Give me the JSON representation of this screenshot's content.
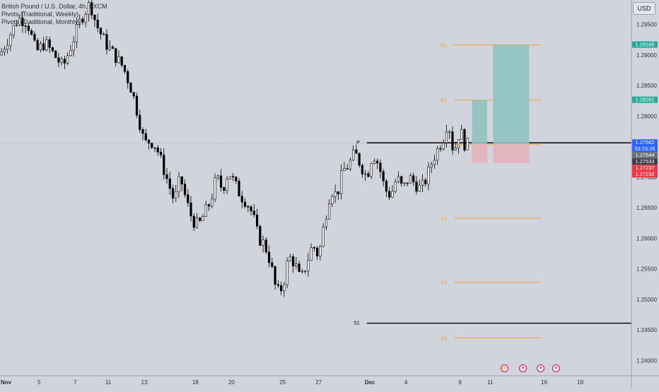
{
  "legend": {
    "symbol": "British Pound / U.S. Dollar, 4h, FXCM",
    "line2": "Pivots (Traditional, Weekly)",
    "line3": "Pivots (Traditional, Monthly)"
  },
  "currency": "USD",
  "colors": {
    "bg": "#d1d4dc",
    "candle": "#000000",
    "pivot_weekly": "#f0a030",
    "pivot_monthly": "#000000",
    "profit": "#8fc1c1",
    "loss": "#e3b3b8",
    "green_label": "#22ab94",
    "red_label": "#f23645",
    "blue_label": "#2962ff",
    "gray_label": "#6b6f7a"
  },
  "chart_data": {
    "type": "candlestick",
    "symbol": "GBPUSD",
    "timeframe": "4h",
    "ylim": [
      1.2375,
      1.299
    ],
    "xlim": [
      0,
      210
    ],
    "y_ticks": [
      "1.29500",
      "1.29000",
      "1.28500",
      "1.28000",
      "1.27500",
      "1.27000",
      "1.26500",
      "1.26000",
      "1.25500",
      "1.25000",
      "1.24500",
      "1.24000"
    ],
    "y_tick_values": [
      1.295,
      1.29,
      1.285,
      1.28,
      1.275,
      1.27,
      1.265,
      1.26,
      1.255,
      1.25,
      1.245,
      1.24
    ],
    "x_ticks": [
      {
        "label": "Nov",
        "x": 2,
        "bold": true
      },
      {
        "label": "5",
        "x": 13
      },
      {
        "label": "7",
        "x": 25
      },
      {
        "label": "11",
        "x": 36
      },
      {
        "label": "13",
        "x": 48
      },
      {
        "label": "18",
        "x": 65
      },
      {
        "label": "20",
        "x": 77
      },
      {
        "label": "25",
        "x": 94
      },
      {
        "label": "27",
        "x": 106
      },
      {
        "label": "Dec",
        "x": 123,
        "bold": true
      },
      {
        "label": "4",
        "x": 135
      },
      {
        "label": "9",
        "x": 153
      },
      {
        "label": "11",
        "x": 163
      },
      {
        "label": "16",
        "x": 181
      },
      {
        "label": "18",
        "x": 193
      }
    ],
    "price_path": [
      [
        0,
        1.29
      ],
      [
        3,
        1.293
      ],
      [
        6,
        1.296
      ],
      [
        9,
        1.2955
      ],
      [
        12,
        1.2905
      ],
      [
        15,
        1.292
      ],
      [
        18,
        1.29
      ],
      [
        21,
        1.288
      ],
      [
        24,
        1.292
      ],
      [
        27,
        1.296
      ],
      [
        30,
        1.2985
      ],
      [
        32,
        1.295
      ],
      [
        35,
        1.292
      ],
      [
        38,
        1.29
      ],
      [
        41,
        1.288
      ],
      [
        44,
        1.284
      ],
      [
        46,
        1.28
      ],
      [
        48,
        1.2755
      ],
      [
        50,
        1.276
      ],
      [
        52,
        1.275
      ],
      [
        54,
        1.272
      ],
      [
        56,
        1.269
      ],
      [
        58,
        1.266
      ],
      [
        60,
        1.27
      ],
      [
        62,
        1.266
      ],
      [
        64,
        1.263
      ],
      [
        66,
        1.262
      ],
      [
        68,
        1.264
      ],
      [
        70,
        1.266
      ],
      [
        72,
        1.27
      ],
      [
        74,
        1.268
      ],
      [
        76,
        1.271
      ],
      [
        78,
        1.269
      ],
      [
        80,
        1.267
      ],
      [
        82,
        1.266
      ],
      [
        84,
        1.264
      ],
      [
        86,
        1.26
      ],
      [
        88,
        1.259
      ],
      [
        90,
        1.256
      ],
      [
        92,
        1.251
      ],
      [
        94,
        1.252
      ],
      [
        96,
        1.257
      ],
      [
        98,
        1.256
      ],
      [
        100,
        1.253
      ],
      [
        102,
        1.256
      ],
      [
        104,
        1.259
      ],
      [
        106,
        1.257
      ],
      [
        108,
        1.263
      ],
      [
        110,
        1.268
      ],
      [
        112,
        1.267
      ],
      [
        114,
        1.271
      ],
      [
        116,
        1.272
      ],
      [
        118,
        1.274
      ],
      [
        120,
        1.272
      ],
      [
        122,
        1.27
      ],
      [
        124,
        1.274
      ],
      [
        126,
        1.272
      ],
      [
        128,
        1.268
      ],
      [
        130,
        1.267
      ],
      [
        132,
        1.27
      ],
      [
        134,
        1.268
      ],
      [
        136,
        1.27
      ],
      [
        138,
        1.269
      ],
      [
        140,
        1.268
      ],
      [
        142,
        1.27
      ],
      [
        144,
        1.273
      ],
      [
        146,
        1.275
      ],
      [
        148,
        1.277
      ],
      [
        149,
        1.28
      ],
      [
        150,
        1.276
      ],
      [
        151,
        1.274
      ],
      [
        152,
        1.276
      ],
      [
        153,
        1.278
      ],
      [
        154,
        1.276
      ],
      [
        155,
        1.275
      ],
      [
        156,
        1.2757
      ]
    ],
    "last_price": "1.27562",
    "countdown": "03:23:26",
    "weekly_pivots": [
      {
        "name": "R2",
        "label": "R2",
        "value": 1.29165
      },
      {
        "name": "R1",
        "label": "R1",
        "value": 1.28262
      },
      {
        "name": "P",
        "label": "P",
        "value": 1.27533
      },
      {
        "name": "S1",
        "label": "S1",
        "value": 1.2633
      },
      {
        "name": "S2",
        "label": "S2",
        "value": 1.2528
      },
      {
        "name": "S3",
        "label": "S3",
        "value": 1.2437
      }
    ],
    "monthly_pivots": [
      {
        "name": "P",
        "label": "P",
        "value": 1.27562
      },
      {
        "name": "S1",
        "label": "S1",
        "value": 1.2461
      }
    ],
    "positions": [
      {
        "entry": 1.27544,
        "target": 1.28262,
        "stop": 1.27237,
        "x0": 157,
        "x1": 162
      },
      {
        "entry": 1.27544,
        "target": 1.29165,
        "stop": 1.27232,
        "x0": 164,
        "x1": 176
      }
    ],
    "price_labels": [
      {
        "text": "1.29165",
        "value": 1.29165,
        "color": "green"
      },
      {
        "text": "1.28262",
        "value": 1.28262,
        "color": "green"
      },
      {
        "text": "1.27562",
        "value": 1.27562,
        "color": "blue"
      },
      {
        "text": "03:23:26",
        "value": 1.27562,
        "color": "blue",
        "offset": 1
      },
      {
        "text": "1.27544",
        "value": 1.27544,
        "color": "gray"
      },
      {
        "text": "1.27533",
        "value": 1.27533,
        "color": "dark"
      },
      {
        "text": "1.27237",
        "value": 1.27237,
        "color": "red"
      },
      {
        "text": "1.27232",
        "value": 1.27232,
        "color": "red"
      }
    ]
  },
  "events": [
    "lightning-icon",
    "us-flag-icon",
    "us-flag-icon",
    "us-flag-icon"
  ]
}
